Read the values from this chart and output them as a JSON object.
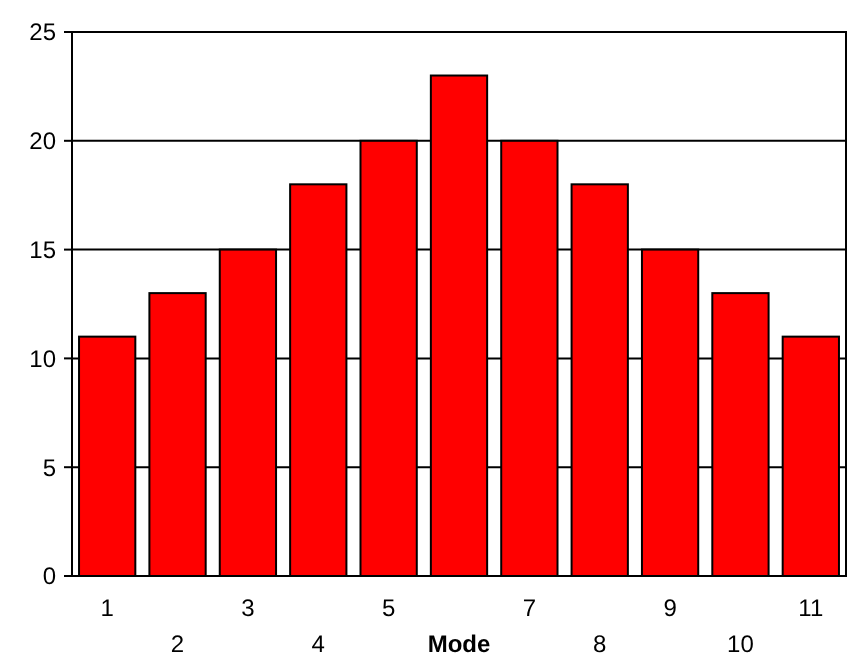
{
  "chart_data": {
    "type": "bar",
    "xlabel": "Mode",
    "categories": [
      "1",
      "2",
      "3",
      "4",
      "5",
      null,
      "7",
      "8",
      "9",
      "10",
      "11"
    ],
    "values": [
      11,
      13,
      15,
      18,
      20,
      23,
      20,
      18,
      15,
      13,
      11
    ],
    "color": "#ff0000",
    "ylim": [
      0,
      25
    ],
    "yticks": [
      0,
      5,
      10,
      15,
      20,
      25
    ],
    "grid": "y"
  }
}
